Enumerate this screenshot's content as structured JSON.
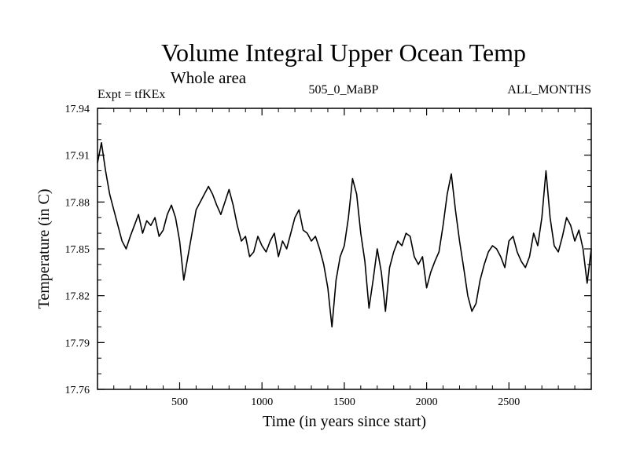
{
  "header": {
    "title": "Volume Integral Upper Ocean Temp",
    "subtitle": "Whole area",
    "expt": "Expt = tfKEx",
    "run": "505_0_MaBP",
    "months": "ALL_MONTHS"
  },
  "chart_data": {
    "type": "line",
    "title": "Volume Integral Upper Ocean Temp",
    "subtitle": "Whole area",
    "xlabel": "Time (in years since start)",
    "ylabel": "Temperature (in C)",
    "xlim": [
      1,
      3000
    ],
    "ylim": [
      17.76,
      17.94
    ],
    "xticks": [
      500,
      1000,
      1500,
      2000,
      2500
    ],
    "xtick_labels": [
      "500",
      "1000",
      "1500",
      "2000",
      "2500"
    ],
    "yticks": [
      17.76,
      17.79,
      17.82,
      17.85,
      17.88,
      17.91,
      17.94
    ],
    "ytick_labels": [
      "17.76",
      "17.79",
      "17.82",
      "17.85",
      "17.88",
      "17.91",
      "17.94"
    ],
    "grid": false,
    "legend": "none",
    "line_color": "#000000",
    "series": [
      {
        "x": [
          1,
          25,
          50,
          75,
          100,
          125,
          150,
          175,
          200,
          225,
          250,
          275,
          300,
          325,
          350,
          375,
          400,
          425,
          450,
          475,
          500,
          525,
          550,
          575,
          600,
          625,
          650,
          675,
          700,
          725,
          750,
          775,
          800,
          825,
          850,
          875,
          900,
          925,
          950,
          975,
          1000,
          1025,
          1050,
          1075,
          1100,
          1125,
          1150,
          1175,
          1200,
          1225,
          1250,
          1275,
          1300,
          1325,
          1350,
          1375,
          1400,
          1425,
          1450,
          1475,
          1500,
          1525,
          1550,
          1575,
          1600,
          1625,
          1650,
          1675,
          1700,
          1725,
          1750,
          1775,
          1800,
          1825,
          1850,
          1875,
          1900,
          1925,
          1950,
          1975,
          2000,
          2025,
          2050,
          2075,
          2100,
          2125,
          2150,
          2175,
          2200,
          2225,
          2250,
          2275,
          2300,
          2325,
          2350,
          2375,
          2400,
          2425,
          2450,
          2475,
          2500,
          2525,
          2550,
          2575,
          2600,
          2625,
          2650,
          2675,
          2700,
          2725,
          2750,
          2775,
          2800,
          2825,
          2850,
          2875,
          2900,
          2925,
          2950,
          2975,
          3000
        ],
        "values": [
          17.905,
          17.918,
          17.9,
          17.885,
          17.875,
          17.865,
          17.855,
          17.85,
          17.858,
          17.865,
          17.872,
          17.86,
          17.868,
          17.865,
          17.87,
          17.858,
          17.862,
          17.872,
          17.878,
          17.87,
          17.855,
          17.83,
          17.845,
          17.86,
          17.875,
          17.88,
          17.885,
          17.89,
          17.885,
          17.878,
          17.872,
          17.88,
          17.888,
          17.878,
          17.865,
          17.855,
          17.858,
          17.845,
          17.848,
          17.858,
          17.852,
          17.848,
          17.855,
          17.86,
          17.845,
          17.855,
          17.85,
          17.86,
          17.87,
          17.875,
          17.862,
          17.86,
          17.855,
          17.858,
          17.85,
          17.84,
          17.825,
          17.8,
          17.83,
          17.845,
          17.852,
          17.87,
          17.895,
          17.885,
          17.86,
          17.842,
          17.812,
          17.83,
          17.85,
          17.835,
          17.81,
          17.838,
          17.848,
          17.855,
          17.852,
          17.86,
          17.858,
          17.845,
          17.84,
          17.845,
          17.825,
          17.835,
          17.842,
          17.848,
          17.865,
          17.885,
          17.898,
          17.875,
          17.855,
          17.838,
          17.82,
          17.81,
          17.815,
          17.83,
          17.84,
          17.848,
          17.852,
          17.85,
          17.845,
          17.838,
          17.855,
          17.858,
          17.848,
          17.842,
          17.838,
          17.845,
          17.86,
          17.852,
          17.87,
          17.9,
          17.87,
          17.852,
          17.848,
          17.858,
          17.87,
          17.865,
          17.855,
          17.862,
          17.85,
          17.828,
          17.85
        ]
      }
    ]
  }
}
